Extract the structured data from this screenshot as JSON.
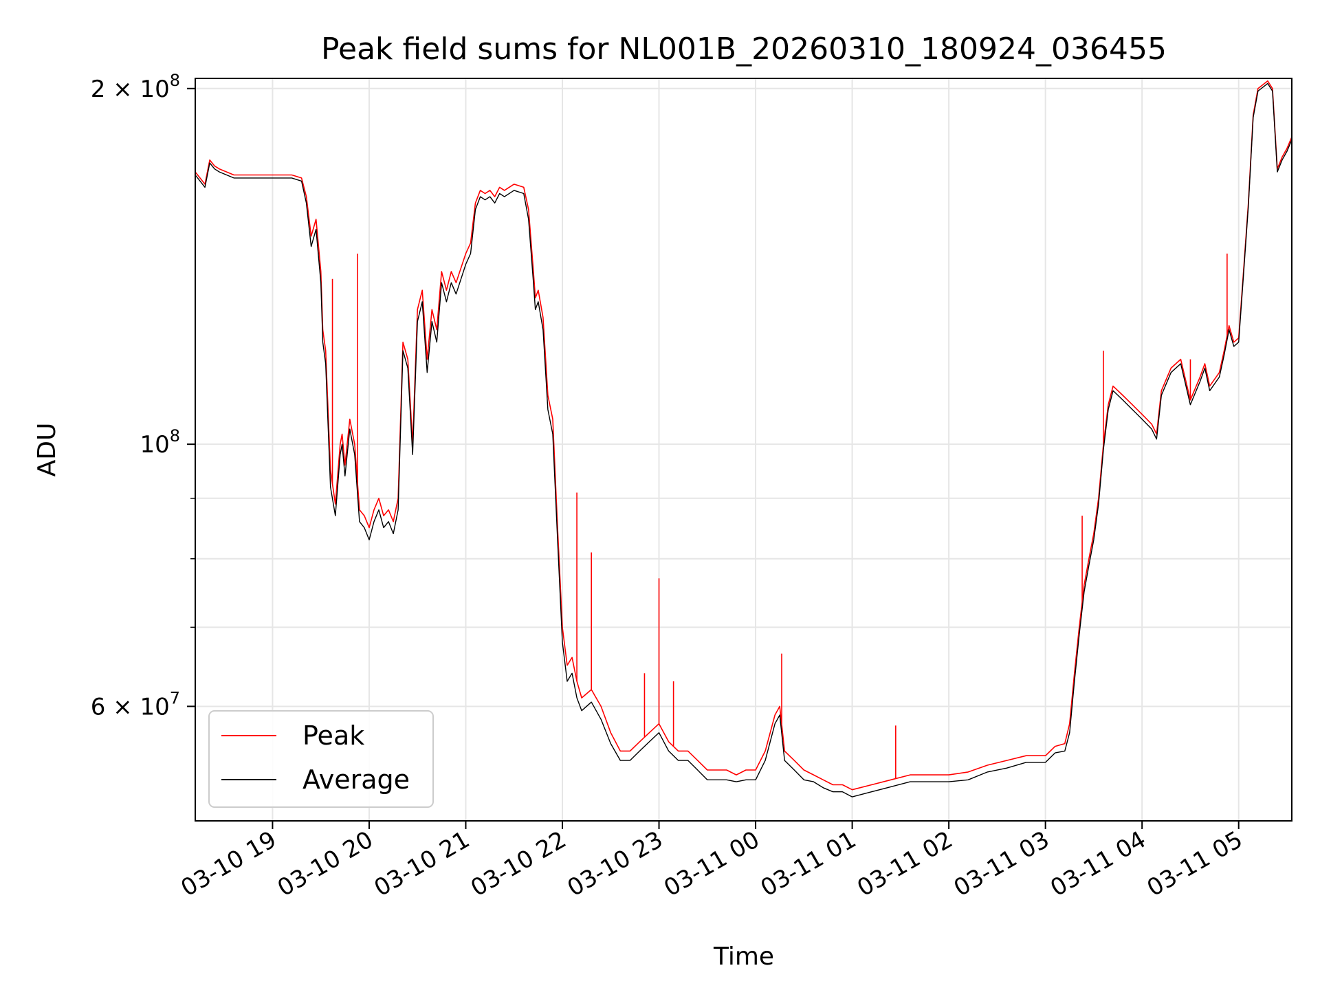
{
  "chart_data": {
    "type": "line",
    "title": "Peak field sums for NL001B_20260310_180924_036455",
    "xlabel": "Time",
    "ylabel": "ADU",
    "yscale": "log",
    "ylim": [
      48000000,
      204000000
    ],
    "xlim_hours": [
      18.2,
      29.55
    ],
    "grid": true,
    "legend_position": "lower-left",
    "x_tick_labels": [
      {
        "hours": 19,
        "label": "03-10 19"
      },
      {
        "hours": 20,
        "label": "03-10 20"
      },
      {
        "hours": 21,
        "label": "03-10 21"
      },
      {
        "hours": 22,
        "label": "03-10 22"
      },
      {
        "hours": 23,
        "label": "03-10 23"
      },
      {
        "hours": 24,
        "label": "03-11 00"
      },
      {
        "hours": 25,
        "label": "03-11 01"
      },
      {
        "hours": 26,
        "label": "03-11 02"
      },
      {
        "hours": 27,
        "label": "03-11 03"
      },
      {
        "hours": 28,
        "label": "03-11 04"
      },
      {
        "hours": 29,
        "label": "03-11 05"
      }
    ],
    "y_tick_labels": [
      {
        "value": 200000000,
        "base": "2 × 10",
        "exp": "8"
      },
      {
        "value": 100000000,
        "base": "10",
        "exp": "8"
      },
      {
        "value": 60000000,
        "base": "6 × 10",
        "exp": "7"
      }
    ],
    "y_minor_ticks": [
      70000000,
      80000000,
      90000000
    ],
    "series": [
      {
        "name": "Peak",
        "color": "#ff0000",
        "x_hours": [
          18.2,
          18.3,
          18.35,
          18.4,
          18.45,
          18.6,
          19.0,
          19.2,
          19.3,
          19.35,
          19.4,
          19.45,
          19.5,
          19.52,
          19.55,
          19.6,
          19.65,
          19.7,
          19.72,
          19.75,
          19.8,
          19.85,
          19.9,
          19.95,
          20.0,
          20.05,
          20.1,
          20.15,
          20.2,
          20.25,
          20.3,
          20.35,
          20.4,
          20.45,
          20.5,
          20.55,
          20.6,
          20.65,
          20.7,
          20.75,
          20.8,
          20.85,
          20.9,
          21.0,
          21.05,
          21.1,
          21.15,
          21.2,
          21.25,
          21.3,
          21.35,
          21.4,
          21.5,
          21.6,
          21.65,
          21.7,
          21.72,
          21.75,
          21.8,
          21.85,
          21.9,
          21.95,
          22.0,
          22.05,
          22.1,
          22.15,
          22.2,
          22.3,
          22.4,
          22.5,
          22.6,
          22.7,
          22.8,
          22.9,
          23.0,
          23.1,
          23.2,
          23.3,
          23.4,
          23.5,
          23.6,
          23.7,
          23.8,
          23.9,
          24.0,
          24.1,
          24.2,
          24.25,
          24.3,
          24.4,
          24.5,
          24.6,
          24.7,
          24.8,
          24.9,
          25.0,
          25.2,
          25.4,
          25.6,
          25.8,
          26.0,
          26.2,
          26.4,
          26.6,
          26.8,
          27.0,
          27.1,
          27.2,
          27.25,
          27.3,
          27.35,
          27.4,
          27.45,
          27.5,
          27.55,
          27.6,
          27.65,
          27.7,
          27.8,
          27.9,
          28.0,
          28.1,
          28.15,
          28.2,
          28.3,
          28.4,
          28.5,
          28.6,
          28.65,
          28.7,
          28.8,
          28.85,
          28.9,
          28.95,
          29.0,
          29.05,
          29.1,
          29.15,
          29.2,
          29.3,
          29.35,
          29.4,
          29.45,
          29.5,
          29.55
        ],
        "values": [
          170000000,
          166000000,
          174000000,
          172000000,
          171000000,
          169000000,
          169000000,
          169000000,
          168000000,
          162000000,
          150000000,
          155000000,
          140000000,
          125000000,
          120000000,
          95000000,
          89000000,
          100000000,
          102000000,
          96000000,
          105000000,
          100000000,
          88000000,
          87000000,
          85000000,
          88000000,
          90000000,
          87000000,
          88000000,
          86000000,
          90000000,
          122000000,
          118000000,
          100000000,
          130000000,
          135000000,
          118000000,
          130000000,
          125000000,
          140000000,
          135000000,
          140000000,
          137000000,
          145000000,
          148000000,
          160000000,
          164000000,
          163000000,
          164000000,
          162000000,
          165000000,
          164000000,
          166000000,
          165000000,
          158000000,
          140000000,
          133000000,
          135000000,
          128000000,
          110000000,
          105000000,
          85000000,
          70000000,
          65000000,
          66000000,
          63000000,
          61000000,
          62000000,
          60000000,
          57000000,
          55000000,
          55000000,
          56000000,
          57000000,
          58000000,
          56000000,
          55000000,
          55000000,
          54000000,
          53000000,
          53000000,
          53000000,
          52500000,
          53000000,
          53000000,
          55000000,
          59000000,
          60000000,
          55000000,
          54000000,
          53000000,
          52500000,
          52000000,
          51500000,
          51500000,
          51000000,
          51500000,
          52000000,
          52500000,
          52500000,
          52500000,
          52800000,
          53500000,
          54000000,
          54500000,
          54500000,
          55500000,
          55800000,
          58000000,
          64000000,
          70000000,
          76000000,
          80000000,
          84000000,
          90000000,
          100000000,
          108000000,
          112000000,
          110000000,
          108000000,
          106000000,
          104000000,
          102000000,
          111000000,
          116000000,
          118000000,
          109000000,
          114000000,
          117000000,
          112000000,
          115000000,
          120000000,
          126000000,
          122000000,
          123000000,
          140000000,
          160000000,
          190000000,
          200000000,
          203000000,
          200000000,
          171000000,
          175000000,
          178000000,
          182000000
        ],
        "spikes": [
          {
            "hours": 19.62,
            "value": 138000000
          },
          {
            "hours": 19.88,
            "value": 145000000
          },
          {
            "hours": 22.15,
            "value": 91000000
          },
          {
            "hours": 22.3,
            "value": 81000000
          },
          {
            "hours": 23.0,
            "value": 77000000
          },
          {
            "hours": 22.85,
            "value": 64000000
          },
          {
            "hours": 23.15,
            "value": 63000000
          },
          {
            "hours": 24.27,
            "value": 66500000
          },
          {
            "hours": 25.45,
            "value": 57800000
          },
          {
            "hours": 27.38,
            "value": 87000000
          },
          {
            "hours": 27.6,
            "value": 120000000
          },
          {
            "hours": 28.5,
            "value": 118000000
          },
          {
            "hours": 28.88,
            "value": 145000000
          }
        ]
      },
      {
        "name": "Average",
        "color": "#000000",
        "x_hours": [
          18.2,
          18.3,
          18.35,
          18.4,
          18.45,
          18.6,
          19.0,
          19.2,
          19.3,
          19.35,
          19.4,
          19.45,
          19.5,
          19.52,
          19.55,
          19.6,
          19.65,
          19.7,
          19.72,
          19.75,
          19.8,
          19.85,
          19.9,
          19.95,
          20.0,
          20.05,
          20.1,
          20.15,
          20.2,
          20.25,
          20.3,
          20.35,
          20.4,
          20.45,
          20.5,
          20.55,
          20.6,
          20.65,
          20.7,
          20.75,
          20.8,
          20.85,
          20.9,
          21.0,
          21.05,
          21.1,
          21.15,
          21.2,
          21.25,
          21.3,
          21.35,
          21.4,
          21.5,
          21.6,
          21.65,
          21.7,
          21.72,
          21.75,
          21.8,
          21.85,
          21.9,
          21.95,
          22.0,
          22.05,
          22.1,
          22.15,
          22.2,
          22.3,
          22.4,
          22.5,
          22.6,
          22.7,
          22.8,
          22.9,
          23.0,
          23.1,
          23.2,
          23.3,
          23.4,
          23.5,
          23.6,
          23.7,
          23.8,
          23.9,
          24.0,
          24.1,
          24.2,
          24.25,
          24.3,
          24.4,
          24.5,
          24.6,
          24.7,
          24.8,
          24.9,
          25.0,
          25.2,
          25.4,
          25.6,
          25.8,
          26.0,
          26.2,
          26.4,
          26.6,
          26.8,
          27.0,
          27.1,
          27.2,
          27.25,
          27.3,
          27.35,
          27.4,
          27.45,
          27.5,
          27.55,
          27.6,
          27.65,
          27.7,
          27.8,
          27.9,
          28.0,
          28.1,
          28.15,
          28.2,
          28.3,
          28.4,
          28.5,
          28.6,
          28.65,
          28.7,
          28.8,
          28.85,
          28.9,
          28.95,
          29.0,
          29.05,
          29.1,
          29.15,
          29.2,
          29.3,
          29.35,
          29.4,
          29.45,
          29.5,
          29.55
        ],
        "values": [
          169000000,
          165000000,
          173000000,
          171000000,
          170000000,
          168000000,
          168000000,
          168000000,
          167000000,
          160000000,
          147000000,
          152000000,
          137000000,
          122000000,
          117000000,
          92000000,
          87000000,
          98000000,
          100000000,
          94000000,
          103000000,
          98000000,
          86000000,
          85000000,
          83000000,
          86000000,
          88000000,
          85000000,
          86000000,
          84000000,
          88000000,
          120000000,
          116000000,
          98000000,
          127000000,
          132000000,
          115000000,
          127000000,
          122000000,
          137000000,
          132000000,
          137000000,
          134000000,
          142000000,
          145000000,
          158000000,
          162000000,
          161000000,
          162000000,
          160000000,
          163000000,
          162000000,
          164000000,
          163000000,
          155000000,
          137000000,
          130000000,
          132000000,
          125000000,
          107000000,
          102000000,
          83000000,
          68000000,
          63000000,
          64000000,
          61000000,
          59500000,
          60500000,
          58500000,
          55800000,
          54000000,
          54000000,
          55000000,
          56000000,
          57000000,
          55000000,
          54000000,
          54000000,
          53000000,
          52000000,
          52000000,
          52000000,
          51800000,
          52000000,
          52000000,
          54000000,
          58000000,
          59000000,
          54000000,
          53000000,
          52000000,
          51800000,
          51200000,
          50800000,
          50800000,
          50300000,
          50800000,
          51300000,
          51800000,
          51800000,
          51800000,
          52000000,
          52800000,
          53200000,
          53800000,
          53800000,
          54800000,
          55000000,
          57000000,
          63000000,
          69000000,
          75000000,
          79000000,
          83000000,
          89000000,
          99000000,
          107000000,
          111000000,
          109000000,
          107000000,
          105000000,
          103000000,
          101000000,
          110000000,
          115000000,
          117000000,
          108000000,
          113000000,
          116000000,
          111000000,
          114000000,
          119000000,
          125000000,
          121000000,
          122000000,
          139000000,
          159000000,
          189000000,
          199000000,
          202000000,
          199000000,
          170000000,
          174000000,
          177000000,
          181000000
        ]
      }
    ]
  }
}
